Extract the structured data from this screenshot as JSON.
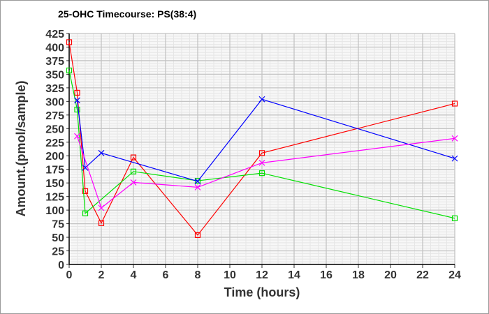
{
  "chart_data": {
    "type": "line",
    "title": "25-OHC Timecourse: PS(38:4)",
    "xlabel": "Time (hours)",
    "ylabel": "Amount.(pmol/sample)",
    "xlim": [
      0,
      24
    ],
    "ylim": [
      0,
      425
    ],
    "xticks": [
      0,
      2,
      4,
      6,
      8,
      10,
      12,
      14,
      16,
      18,
      20,
      22,
      24
    ],
    "yticks": [
      0,
      25,
      50,
      75,
      100,
      125,
      150,
      175,
      200,
      225,
      250,
      275,
      300,
      325,
      350,
      375,
      400,
      425
    ],
    "grid": true,
    "x": [
      0,
      0.5,
      1,
      2,
      4,
      8,
      12,
      24
    ],
    "series": [
      {
        "name": "red",
        "color": "#ff0000",
        "marker": "square",
        "values": [
          409,
          316,
          135,
          76,
          197,
          54,
          205,
          296
        ]
      },
      {
        "name": "green",
        "color": "#00e000",
        "marker": "square",
        "values": [
          357,
          285,
          94,
          null,
          171,
          154,
          168,
          85
        ]
      },
      {
        "name": "blue",
        "color": "#0000ff",
        "marker": "x",
        "values": [
          null,
          302,
          178,
          205,
          null,
          153,
          304,
          195
        ]
      },
      {
        "name": "magenta",
        "color": "#ff00ff",
        "marker": "x",
        "values": [
          null,
          236,
          null,
          104,
          151,
          142,
          187,
          232
        ]
      }
    ]
  }
}
